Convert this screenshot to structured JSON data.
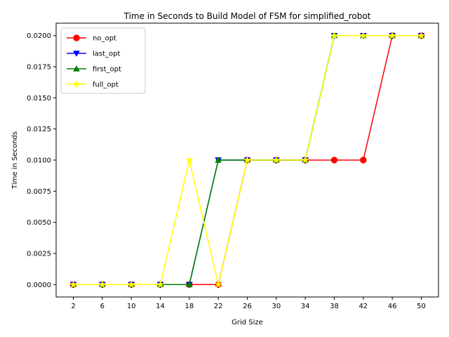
{
  "chart_data": {
    "type": "line",
    "title": "Time in Seconds to Build Model of FSM for simplified_robot",
    "xlabel": "Grid Size",
    "ylabel": "Time in Seconds",
    "categories": [
      "2",
      "6",
      "10",
      "14",
      "18",
      "22",
      "26",
      "30",
      "34",
      "38",
      "42",
      "46",
      "50"
    ],
    "ylim": [
      -0.001,
      0.021
    ],
    "yticks": [
      "0.0000",
      "0.0025",
      "0.0050",
      "0.0075",
      "0.0100",
      "0.0125",
      "0.0150",
      "0.0175",
      "0.0200"
    ],
    "legend_position": "top-left",
    "grid": false,
    "series": [
      {
        "name": "no_opt",
        "color": "#ff0000",
        "marker": "circle",
        "values": [
          0,
          0,
          0,
          0,
          0,
          0,
          0.01,
          0.01,
          0.01,
          0.01,
          0.01,
          0.02,
          0.02
        ]
      },
      {
        "name": "last_opt",
        "color": "#0000ff",
        "marker": "triangle-down",
        "values": [
          0,
          0,
          0,
          0,
          0,
          0.01,
          0.01,
          0.01,
          0.01,
          0.02,
          0.02,
          0.02,
          0.02
        ]
      },
      {
        "name": "first_opt",
        "color": "#008000",
        "marker": "triangle-up",
        "values": [
          0,
          0,
          0,
          0,
          0,
          0.01,
          0.01,
          0.01,
          0.01,
          0.02,
          0.02,
          0.02,
          0.02
        ]
      },
      {
        "name": "full_opt",
        "color": "#ffff00",
        "marker": "star",
        "values": [
          0,
          0,
          0,
          0,
          0.01,
          0,
          0.01,
          0.01,
          0.01,
          0.02,
          0.02,
          0.02,
          0.02
        ]
      }
    ]
  }
}
